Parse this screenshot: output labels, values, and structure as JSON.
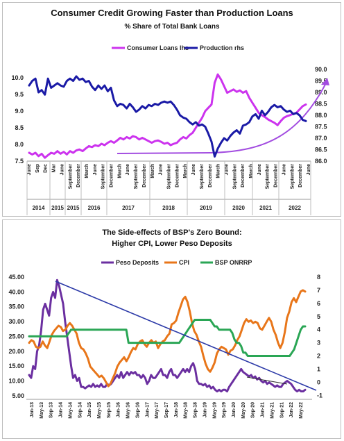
{
  "chart_data": [
    {
      "type": "line",
      "title": "Consumer Credit Growing Faster than Production Loans",
      "subtitle": "% Share of Total Bank Loans",
      "legend_position": "top-center",
      "axes": {
        "left": {
          "ticks": [
            "7.5",
            "8.0",
            "8.5",
            "9.0",
            "9.5",
            "10.0"
          ],
          "range": [
            7.5,
            10.25
          ]
        },
        "right": {
          "ticks": [
            "86.0",
            "86.5",
            "87.0",
            "87.5",
            "88.0",
            "88.5",
            "89.0",
            "89.5",
            "90.0"
          ],
          "range": [
            86.0,
            90.0
          ]
        }
      },
      "x_month_labels": [
        "June",
        "Sep",
        "Dec",
        "Mar",
        "June",
        "September",
        "December",
        "March",
        "June",
        "September",
        "December",
        "March",
        "June",
        "September",
        "December",
        "March",
        "June",
        "September",
        "December",
        "March",
        "June",
        "September",
        "December",
        "March",
        "June",
        "September",
        "December",
        "March",
        "June",
        "September",
        "December",
        "June",
        "September",
        "December",
        "June"
      ],
      "years": [
        "2014",
        "2015",
        "2015",
        "2016",
        "2017",
        "2018",
        "2019",
        "2020",
        "2021",
        "2022"
      ],
      "grid": false,
      "series": [
        {
          "name": "Consumer Loans lhs",
          "axis": "left",
          "color": "#cc33ee",
          "values": [
            7.75,
            7.7,
            7.75,
            7.65,
            7.72,
            7.6,
            7.68,
            7.75,
            7.72,
            7.8,
            7.72,
            7.78,
            7.7,
            7.8,
            7.75,
            7.82,
            7.85,
            7.8,
            7.88,
            7.95,
            7.92,
            7.98,
            7.95,
            8.02,
            7.98,
            8.05,
            8.1,
            8.05,
            8.12,
            8.2,
            8.15,
            8.22,
            8.18,
            8.25,
            8.22,
            8.15,
            8.2,
            8.15,
            8.1,
            8.05,
            8.1,
            8.12,
            8.08,
            8.02,
            8.05,
            7.98,
            8.02,
            8.05,
            8.15,
            8.22,
            8.18,
            8.28,
            8.35,
            8.5,
            8.65,
            8.8,
            9.0,
            9.1,
            9.2,
            9.85,
            10.1,
            9.95,
            9.75,
            9.55,
            9.6,
            9.65,
            9.58,
            9.62,
            9.55,
            9.6,
            9.4,
            9.25,
            9.1,
            8.95,
            8.88,
            8.82,
            8.75,
            8.7,
            8.65,
            8.58,
            8.7,
            8.8,
            8.85,
            8.88,
            8.92,
            8.95,
            9.05,
            9.15,
            9.2
          ]
        },
        {
          "name": "Production rhs",
          "axis": "right",
          "color": "#1a1aa6",
          "values": [
            89.3,
            89.5,
            89.6,
            89.0,
            89.1,
            88.9,
            89.6,
            89.2,
            89.3,
            89.4,
            89.3,
            89.25,
            89.5,
            89.6,
            89.5,
            89.7,
            89.55,
            89.6,
            89.45,
            89.5,
            89.25,
            89.1,
            89.3,
            89.15,
            89.3,
            89.05,
            89.2,
            88.65,
            88.4,
            88.5,
            88.45,
            88.3,
            88.5,
            88.35,
            88.15,
            88.25,
            88.4,
            88.3,
            88.45,
            88.4,
            88.5,
            88.45,
            88.55,
            88.6,
            88.55,
            88.6,
            88.45,
            88.25,
            88.0,
            87.9,
            87.85,
            87.7,
            87.6,
            87.7,
            87.55,
            87.6,
            87.5,
            87.2,
            86.85,
            86.2,
            86.55,
            86.8,
            87.0,
            86.9,
            87.1,
            87.25,
            87.35,
            87.2,
            87.55,
            87.6,
            87.7,
            87.95,
            88.05,
            87.85,
            88.2,
            88.0,
            88.15,
            88.35,
            88.45,
            88.35,
            88.4,
            88.25,
            88.15,
            88.2,
            88.05,
            88.1,
            88.0,
            87.8,
            87.75
          ]
        }
      ],
      "annotation_curve": {
        "color": "#a24ce0"
      }
    },
    {
      "type": "line",
      "title": "The Side-effects of BSP's Zero Bound:",
      "subtitle": "Higher CPI, Lower Peso Deposits",
      "legend_position": "top-center",
      "axes": {
        "left": {
          "ticks": [
            "5.00",
            "10.00",
            "15.00",
            "20.00",
            "25.00",
            "30.00",
            "35.00",
            "40.00",
            "45.00"
          ],
          "range": [
            3.8,
            45.0
          ]
        },
        "right": {
          "ticks": [
            "-1",
            "0",
            "1",
            "2",
            "3",
            "4",
            "5",
            "6",
            "7",
            "8"
          ],
          "range": [
            -1.3,
            8.0
          ]
        }
      },
      "x_labels": [
        "Jan-13",
        "May-13",
        "Sep-13",
        "Jan-14",
        "May-14",
        "Sep-14",
        "Jan-15",
        "May-15",
        "Sep-15",
        "Jan-16",
        "May-16",
        "Sep-16",
        "Jan-17",
        "May-17",
        "Sep-17",
        "Jan-18",
        "May-18",
        "Sep-18",
        "Jan-19",
        "May-19",
        "Sep-19",
        "Jan-20",
        "May-20",
        "Sep-20",
        "Jan-21",
        "May-21",
        "Sep-21",
        "Jan-22",
        "May-22"
      ],
      "grid": false,
      "series": [
        {
          "name": "Peso Deposits",
          "axis": "left",
          "color": "#6b2fa0",
          "values": [
            12,
            11,
            15,
            14,
            20,
            22,
            27,
            34,
            36,
            34,
            32,
            38,
            40,
            38,
            44,
            42,
            39,
            36,
            30,
            25,
            20,
            15,
            11,
            12,
            10,
            11,
            8,
            8,
            7.5,
            8,
            8.5,
            8,
            9,
            8,
            8.5,
            8,
            9,
            8,
            8,
            9,
            8.5,
            9,
            10,
            11,
            12,
            11,
            13,
            11,
            12,
            13,
            12,
            13,
            12.5,
            13,
            12,
            12,
            11,
            12,
            11,
            9,
            10,
            12,
            11,
            11,
            12,
            13,
            14,
            12,
            12,
            11,
            13,
            14,
            12,
            12,
            11,
            12,
            13,
            14,
            13,
            14,
            13,
            15,
            16,
            14,
            10,
            9,
            9,
            8.5,
            9,
            8,
            8.5,
            7.5,
            8,
            7,
            6.5,
            7,
            6.5,
            7,
            7,
            6.5,
            8,
            9,
            10,
            11,
            12,
            13,
            14,
            13,
            12.5,
            12,
            11.5,
            12,
            11,
            11.5,
            10.5,
            11,
            10,
            9.5,
            10,
            9,
            9.5,
            9,
            8.5,
            8,
            8.5,
            8,
            8,
            9,
            9.5,
            10,
            9.5,
            9,
            8,
            7,
            6.5,
            7,
            6.5,
            6.5,
            7
          ]
        },
        {
          "name": "CPI",
          "axis": "right",
          "color": "#e8761a",
          "values": [
            3,
            3.2,
            3.1,
            2.7,
            2.6,
            2.7,
            3.1,
            2.8,
            2.6,
            3.1,
            3.6,
            3.9,
            4.1,
            4.3,
            4.2,
            3.9,
            4.0,
            4.3,
            4.5,
            4.3,
            4.0,
            3.7,
            3.0,
            2.6,
            2.5,
            2.2,
            1.8,
            1.2,
            1.0,
            0.8,
            0.6,
            0.4,
            0.5,
            0.3,
            0.0,
            -0.3,
            -0.1,
            0.3,
            0.7,
            1.2,
            1.5,
            1.7,
            1.9,
            1.6,
            1.9,
            2.3,
            2.6,
            2.5,
            2.9,
            3.1,
            3.2,
            2.9,
            2.7,
            3.0,
            3.2,
            3.0,
            3.1,
            2.6,
            2.9,
            3.1,
            3.2,
            3.5,
            3.7,
            4.4,
            4.5,
            4.7,
            5.3,
            5.8,
            6.3,
            6.5,
            6.1,
            5.4,
            4.5,
            3.9,
            3.6,
            3.1,
            2.7,
            2.0,
            1.4,
            1.0,
            0.8,
            1.1,
            1.5,
            2.2,
            2.5,
            2.7,
            2.6,
            2.5,
            2.1,
            2.4,
            2.5,
            2.8,
            3.2,
            3.5,
            4.0,
            4.5,
            4.8,
            4.6,
            4.7,
            4.5,
            4.6,
            4.5,
            4.1,
            4.0,
            4.3,
            4.6,
            4.9,
            4.6,
            4.0,
            3.6,
            3.0,
            2.6,
            3.0,
            3.8,
            4.9,
            5.4,
            6.1,
            6.4,
            6.1,
            6.5,
            6.9,
            7.0,
            6.9
          ]
        },
        {
          "name": "BSP ONRRP",
          "axis": "right",
          "color": "#2aa655",
          "values": [
            3.5,
            3.5,
            3.5,
            3.5,
            3.5,
            3.5,
            3.5,
            3.5,
            3.5,
            3.5,
            3.5,
            3.5,
            3.5,
            3.5,
            3.5,
            3.5,
            3.5,
            3.5,
            3.75,
            4.0,
            4.0,
            4.0,
            4.0,
            4.0,
            4.0,
            4.0,
            4.0,
            4.0,
            4.0,
            4.0,
            4.0,
            4.0,
            4.0,
            4.0,
            4.0,
            4.0,
            4.0,
            4.0,
            4.0,
            4.0,
            4.0,
            4.0,
            4.0,
            4.0,
            4.0,
            3.0,
            3.0,
            3.0,
            3.0,
            3.0,
            3.0,
            3.0,
            3.0,
            3.0,
            3.0,
            3.0,
            3.0,
            3.0,
            3.0,
            3.0,
            3.0,
            3.0,
            3.0,
            3.0,
            3.0,
            3.0,
            3.0,
            3.0,
            3.0,
            3.25,
            3.5,
            3.75,
            4.0,
            4.25,
            4.5,
            4.75,
            4.75,
            4.75,
            4.75,
            4.75,
            4.75,
            4.75,
            4.75,
            4.5,
            4.25,
            4.25,
            4.0,
            4.0,
            4.0,
            4.0,
            4.0,
            4.0,
            3.75,
            3.25,
            3.0,
            3.0,
            2.75,
            2.25,
            2.25,
            2.0,
            2.0,
            2.0,
            2.0,
            2.0,
            2.0,
            2.0,
            2.0,
            2.0,
            2.0,
            2.0,
            2.0,
            2.0,
            2.0,
            2.0,
            2.0,
            2.0,
            2.0,
            2.0,
            2.0,
            2.25,
            2.5,
            3.0,
            3.5,
            4.0,
            4.25,
            4.25
          ]
        }
      ]
    }
  ]
}
